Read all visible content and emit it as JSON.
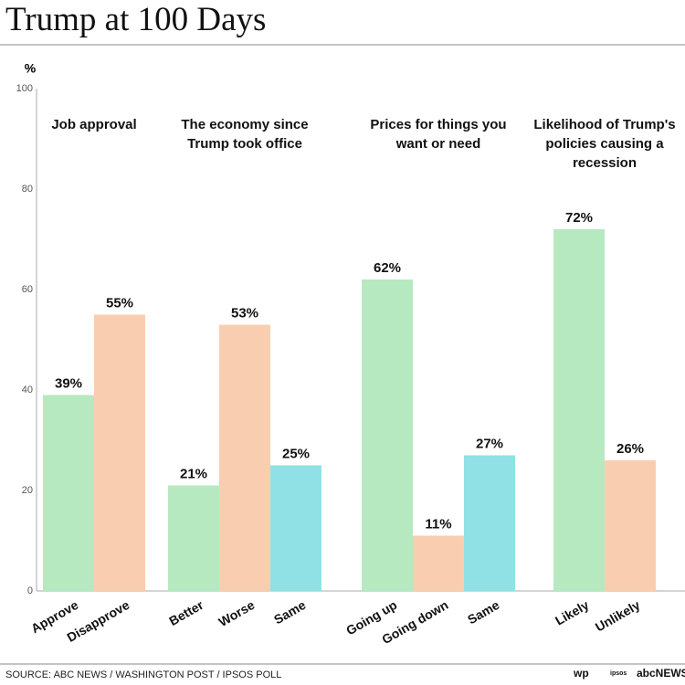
{
  "chart_data": {
    "type": "bar",
    "title": "Trump at 100 Days",
    "y_label": "%",
    "ylim": [
      0,
      100
    ],
    "yticks": [
      0,
      20,
      40,
      60,
      80,
      100
    ],
    "groups": [
      {
        "title": "Job approval",
        "categories": [
          "Approve",
          "Disapprove"
        ],
        "values": [
          39,
          55
        ],
        "value_labels": [
          "39%",
          "55%"
        ],
        "colors": [
          "#b6e9c0",
          "#f9ceb0"
        ]
      },
      {
        "title": "The economy since Trump took office",
        "categories": [
          "Better",
          "Worse",
          "Same"
        ],
        "values": [
          21,
          53,
          25
        ],
        "value_labels": [
          "21%",
          "53%",
          "25%"
        ],
        "colors": [
          "#b6e9c0",
          "#f9ceb0",
          "#8fe1e6"
        ]
      },
      {
        "title": "Prices for things you want or need",
        "categories": [
          "Going up",
          "Going down",
          "Same"
        ],
        "values": [
          62,
          11,
          27
        ],
        "value_labels": [
          "62%",
          "11%",
          "27%"
        ],
        "colors": [
          "#b6e9c0",
          "#f9ceb0",
          "#8fe1e6"
        ]
      },
      {
        "title": "Likelihood of Trump's policies causing a recession",
        "categories": [
          "Likely",
          "Unlikely"
        ],
        "values": [
          72,
          26
        ],
        "value_labels": [
          "72%",
          "26%"
        ],
        "colors": [
          "#b6e9c0",
          "#f9ceb0"
        ]
      }
    ],
    "source": "SOURCE: ABC NEWS / WASHINGTON POST / IPSOS POLL",
    "logos": [
      "wp",
      "ipsos",
      "abcNEWS"
    ]
  }
}
